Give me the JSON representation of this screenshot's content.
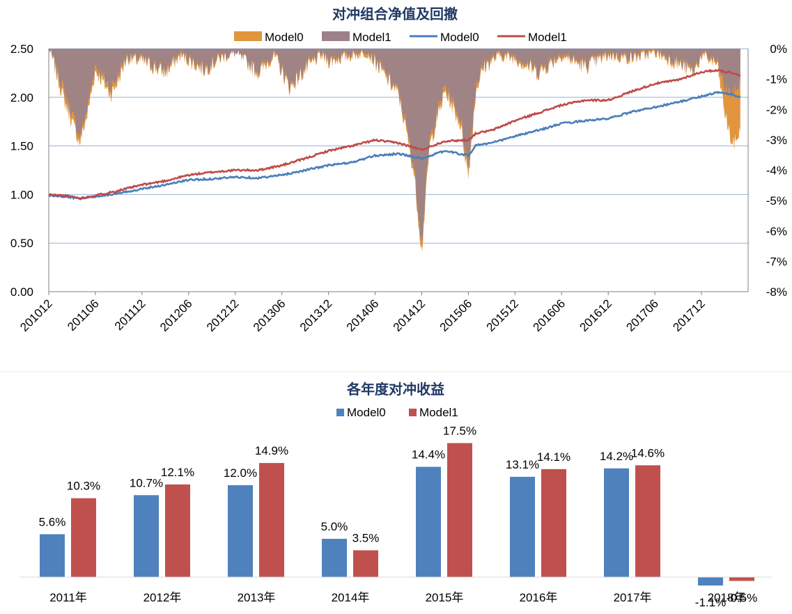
{
  "colors": {
    "model0_line": "#4a7ebb",
    "model1_line": "#be4b48",
    "model0_area": "#e0953e",
    "model1_area": "#9c8288",
    "model0_bar": "#4f81bd",
    "model1_bar": "#c0504d",
    "gridline": "#95b3d7",
    "title": "#1f3864"
  },
  "chart_data": [
    {
      "type": "line",
      "title": "对冲组合净值及回撤",
      "legend": [
        "Model0",
        "Model1",
        "Model0",
        "Model1"
      ],
      "legend_position": "top",
      "grid": true,
      "x_ticks": [
        "201012",
        "201106",
        "201112",
        "201206",
        "201212",
        "201306",
        "201312",
        "201406",
        "201412",
        "201506",
        "201512",
        "201606",
        "201612",
        "201706",
        "201712"
      ],
      "y_left": {
        "ylim": [
          0,
          2.5
        ],
        "ticks": [
          "0.00",
          "0.50",
          "1.00",
          "1.50",
          "2.00",
          "2.50"
        ]
      },
      "y_right": {
        "ylim": [
          -8,
          0
        ],
        "ticks": [
          "0%",
          "-1%",
          "-2%",
          "-3%",
          "-4%",
          "-5%",
          "-6%",
          "-7%",
          "-8%"
        ]
      },
      "series": [
        {
          "name": "Model0",
          "kind": "area",
          "axis": "right",
          "x": [
            "201012",
            "201102",
            "201104",
            "201105",
            "201106",
            "201108",
            "201109",
            "201110",
            "201112",
            "201203",
            "201205",
            "201208",
            "201210",
            "201212",
            "201303",
            "201305",
            "201307",
            "201309",
            "201311",
            "201312",
            "201403",
            "201405",
            "201407",
            "201409",
            "201410",
            "201411",
            "201412",
            "201501",
            "201503",
            "201505",
            "201506",
            "201507",
            "201508",
            "201510",
            "201512",
            "201603",
            "201606",
            "201609",
            "201612",
            "201703",
            "201706",
            "201709",
            "201711",
            "201712",
            "201802",
            "201803",
            "201804",
            "201805"
          ],
          "values": [
            0,
            -1.8,
            -3.2,
            -2.2,
            -0.8,
            -1.6,
            -1.1,
            -0.4,
            -0.5,
            -0.9,
            -0.3,
            -0.8,
            -0.4,
            -0.2,
            -0.9,
            -0.3,
            -1.4,
            -0.8,
            -0.3,
            -0.5,
            -0.3,
            -0.2,
            -0.9,
            -1.6,
            -2.8,
            -4.2,
            -6.8,
            -3.3,
            -1.5,
            -2.6,
            -4.3,
            -1.4,
            -0.7,
            -0.3,
            -0.4,
            -0.9,
            -0.3,
            -0.7,
            -0.3,
            -0.4,
            -0.2,
            -0.6,
            -0.9,
            -0.3,
            -0.6,
            -2.2,
            -3.3,
            -2.8
          ]
        },
        {
          "name": "Model1",
          "kind": "area",
          "axis": "right",
          "x": [
            "201012",
            "201102",
            "201104",
            "201105",
            "201106",
            "201108",
            "201109",
            "201110",
            "201112",
            "201203",
            "201205",
            "201208",
            "201210",
            "201212",
            "201303",
            "201305",
            "201307",
            "201309",
            "201311",
            "201312",
            "201403",
            "201405",
            "201407",
            "201409",
            "201410",
            "201411",
            "201412",
            "201501",
            "201503",
            "201505",
            "201506",
            "201507",
            "201508",
            "201510",
            "201512",
            "201603",
            "201606",
            "201609",
            "201612",
            "201703",
            "201706",
            "201709",
            "201711",
            "201712",
            "201802",
            "201803",
            "201804",
            "201805"
          ],
          "values": [
            0,
            -1.5,
            -3.0,
            -2.0,
            -0.6,
            -1.4,
            -0.9,
            -0.3,
            -0.4,
            -0.8,
            -0.2,
            -0.7,
            -0.3,
            -0.2,
            -0.8,
            -0.2,
            -1.3,
            -0.7,
            -0.2,
            -0.4,
            -0.2,
            -0.1,
            -0.8,
            -1.5,
            -2.6,
            -4.0,
            -6.5,
            -3.1,
            -1.3,
            -2.4,
            -4.0,
            -1.2,
            -0.6,
            -0.2,
            -0.3,
            -0.8,
            -0.2,
            -0.6,
            -0.2,
            -0.3,
            -0.1,
            -0.5,
            -0.8,
            -0.2,
            -0.5,
            -1.4,
            -1.6,
            -1.2
          ]
        },
        {
          "name": "Model0",
          "kind": "line",
          "axis": "left",
          "x": [
            "201012",
            "201103",
            "201104",
            "201106",
            "201109",
            "201112",
            "201203",
            "201206",
            "201209",
            "201212",
            "201303",
            "201306",
            "201309",
            "201312",
            "201403",
            "201406",
            "201409",
            "201412",
            "201503",
            "201506",
            "201507",
            "201509",
            "201512",
            "201603",
            "201606",
            "201609",
            "201612",
            "201703",
            "201706",
            "201709",
            "201712",
            "201802",
            "201804",
            "201805"
          ],
          "values": [
            0.99,
            0.97,
            0.96,
            0.98,
            1.01,
            1.06,
            1.1,
            1.15,
            1.16,
            1.18,
            1.17,
            1.2,
            1.25,
            1.3,
            1.33,
            1.4,
            1.42,
            1.37,
            1.45,
            1.4,
            1.51,
            1.53,
            1.6,
            1.66,
            1.73,
            1.76,
            1.78,
            1.85,
            1.9,
            1.95,
            2.01,
            2.05,
            2.03,
            2.0
          ]
        },
        {
          "name": "Model1",
          "kind": "line",
          "axis": "left",
          "x": [
            "201012",
            "201103",
            "201104",
            "201106",
            "201109",
            "201112",
            "201203",
            "201206",
            "201209",
            "201212",
            "201303",
            "201306",
            "201309",
            "201312",
            "201403",
            "201406",
            "201409",
            "201412",
            "201503",
            "201506",
            "201507",
            "201509",
            "201512",
            "201603",
            "201606",
            "201609",
            "201612",
            "201703",
            "201706",
            "201709",
            "201712",
            "201802",
            "201804",
            "201805"
          ],
          "values": [
            1.0,
            0.98,
            0.96,
            0.99,
            1.04,
            1.1,
            1.14,
            1.2,
            1.23,
            1.25,
            1.25,
            1.3,
            1.37,
            1.45,
            1.5,
            1.56,
            1.53,
            1.46,
            1.55,
            1.56,
            1.63,
            1.66,
            1.76,
            1.84,
            1.92,
            1.97,
            1.97,
            2.06,
            2.14,
            2.18,
            2.26,
            2.28,
            2.25,
            2.23
          ]
        }
      ]
    },
    {
      "type": "bar",
      "title": "各年度对冲收益",
      "legend_position": "top",
      "categories": [
        "2011年",
        "2012年",
        "2013年",
        "2014年",
        "2015年",
        "2016年",
        "2017年",
        "2018年"
      ],
      "series": [
        {
          "name": "Model0",
          "values": [
            5.6,
            10.7,
            12.0,
            5.0,
            14.4,
            13.1,
            14.2,
            -1.1
          ],
          "labels": [
            "5.6%",
            "10.7%",
            "12.0%",
            "5.0%",
            "14.4%",
            "13.1%",
            "14.2%",
            "-1.1%"
          ]
        },
        {
          "name": "Model1",
          "values": [
            10.3,
            12.1,
            14.9,
            3.5,
            17.5,
            14.1,
            14.6,
            -0.5
          ],
          "labels": [
            "10.3%",
            "12.1%",
            "14.9%",
            "3.5%",
            "17.5%",
            "14.1%",
            "14.6%",
            "-0.5%"
          ]
        }
      ]
    }
  ]
}
